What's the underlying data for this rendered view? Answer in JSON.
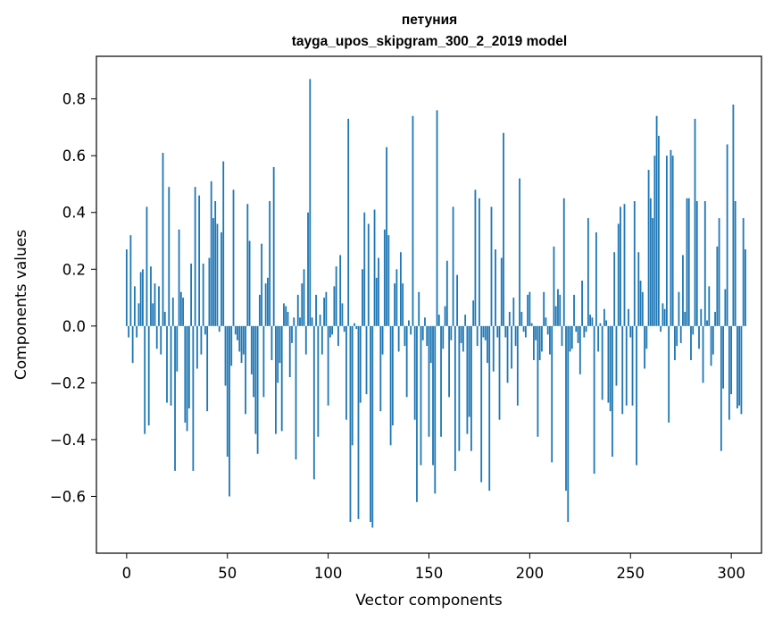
{
  "chart_data": {
    "type": "bar",
    "title": "петуния",
    "subtitle": "tayga_upos_skipgram_300_2_2019 model",
    "xlabel": "Vector components",
    "ylabel": "Components values",
    "xlim": [
      -15,
      315
    ],
    "ylim": [
      -0.8,
      0.95
    ],
    "xticks": [
      0,
      50,
      100,
      150,
      200,
      250,
      300
    ],
    "xtick_labels": [
      "0",
      "50",
      "100",
      "150",
      "200",
      "250",
      "300"
    ],
    "yticks": [
      -0.6,
      -0.4,
      -0.2,
      0.0,
      0.2,
      0.4,
      0.6,
      0.8
    ],
    "ytick_labels": [
      "−0.6",
      "−0.4",
      "−0.2",
      "0.0",
      "0.2",
      "0.4",
      "0.6",
      "0.8"
    ],
    "bar_color": "#1f77b4",
    "values": [
      0.27,
      -0.04,
      0.32,
      -0.13,
      0.14,
      -0.04,
      0.08,
      0.19,
      0.2,
      -0.38,
      0.42,
      -0.35,
      0.21,
      0.08,
      0.15,
      -0.08,
      0.14,
      -0.1,
      0.61,
      0.05,
      -0.27,
      0.49,
      -0.28,
      0.1,
      -0.51,
      -0.16,
      0.34,
      0.12,
      0.1,
      -0.34,
      -0.37,
      -0.29,
      0.22,
      -0.51,
      0.49,
      -0.15,
      0.46,
      -0.1,
      0.22,
      -0.03,
      -0.3,
      0.24,
      0.51,
      0.38,
      0.44,
      0.36,
      -0.02,
      0.33,
      0.58,
      -0.21,
      -0.46,
      -0.6,
      -0.14,
      0.48,
      -0.03,
      -0.05,
      -0.09,
      -0.13,
      -0.1,
      -0.31,
      0.43,
      0.3,
      -0.17,
      -0.25,
      -0.38,
      -0.45,
      0.11,
      0.29,
      -0.25,
      0.15,
      0.17,
      0.44,
      -0.12,
      0.56,
      -0.38,
      -0.2,
      -0.13,
      -0.37,
      0.08,
      0.07,
      0.05,
      -0.18,
      -0.06,
      0.03,
      -0.47,
      0.11,
      0.03,
      0.15,
      0.2,
      -0.1,
      0.4,
      0.87,
      0.03,
      -0.54,
      0.11,
      -0.39,
      0.04,
      -0.1,
      0.1,
      0.12,
      -0.28,
      -0.04,
      -0.03,
      0.14,
      0.21,
      -0.07,
      0.25,
      0.08,
      -0.02,
      -0.33,
      0.73,
      -0.69,
      -0.42,
      0.01,
      -0.01,
      -0.68,
      -0.27,
      0.2,
      0.4,
      -0.24,
      0.36,
      -0.69,
      -0.71,
      0.41,
      0.17,
      0.24,
      -0.3,
      -0.1,
      0.34,
      0.63,
      0.32,
      -0.42,
      -0.35,
      0.15,
      0.2,
      -0.09,
      0.26,
      0.15,
      -0.07,
      -0.25,
      0.02,
      -0.03,
      0.74,
      -0.33,
      -0.62,
      0.12,
      -0.49,
      -0.05,
      0.03,
      -0.07,
      -0.39,
      -0.13,
      -0.49,
      -0.59,
      0.76,
      0.04,
      -0.39,
      -0.08,
      0.07,
      0.23,
      -0.25,
      -0.05,
      0.42,
      -0.51,
      0.18,
      -0.44,
      -0.06,
      -0.09,
      0.04,
      -0.38,
      -0.32,
      -0.44,
      0.09,
      0.48,
      -0.07,
      0.45,
      -0.55,
      -0.04,
      -0.05,
      -0.13,
      -0.58,
      0.42,
      -0.16,
      0.27,
      -0.04,
      -0.33,
      0.24,
      0.68,
      -0.04,
      -0.2,
      0.05,
      -0.15,
      0.1,
      -0.07,
      -0.28,
      0.52,
      0.05,
      -0.02,
      -0.04,
      0.11,
      0.12,
      0.01,
      -0.12,
      -0.05,
      -0.39,
      -0.12,
      -0.09,
      0.12,
      0.03,
      -0.03,
      -0.1,
      -0.48,
      0.28,
      0.07,
      0.13,
      0.11,
      -0.07,
      0.45,
      -0.58,
      -0.69,
      -0.09,
      -0.08,
      0.11,
      -0.02,
      -0.06,
      -0.17,
      0.16,
      -0.04,
      -0.02,
      0.38,
      0.04,
      0.03,
      -0.52,
      0.33,
      -0.09,
      0.01,
      -0.26,
      0.06,
      0.02,
      -0.27,
      -0.3,
      -0.46,
      0.26,
      -0.21,
      0.36,
      0.42,
      -0.31,
      0.43,
      -0.28,
      0.06,
      -0.04,
      -0.28,
      0.44,
      -0.49,
      0.26,
      0.16,
      0.12,
      -0.15,
      -0.08,
      0.55,
      0.45,
      0.38,
      0.6,
      0.74,
      0.67,
      -0.02,
      0.08,
      0.06,
      0.6,
      -0.34,
      0.62,
      0.6,
      -0.12,
      -0.07,
      0.12,
      -0.06,
      0.25,
      0.05,
      0.45,
      0.45,
      -0.12,
      -0.03,
      0.73,
      0.44,
      -0.08,
      0.06,
      -0.2,
      0.44,
      0.02,
      0.14,
      -0.14,
      -0.1,
      0.05,
      0.28,
      0.38,
      -0.44,
      -0.22,
      0.13,
      0.64,
      -0.33,
      -0.24,
      0.78,
      0.44,
      -0.29,
      -0.28,
      -0.31,
      0.38,
      0.27
    ]
  }
}
